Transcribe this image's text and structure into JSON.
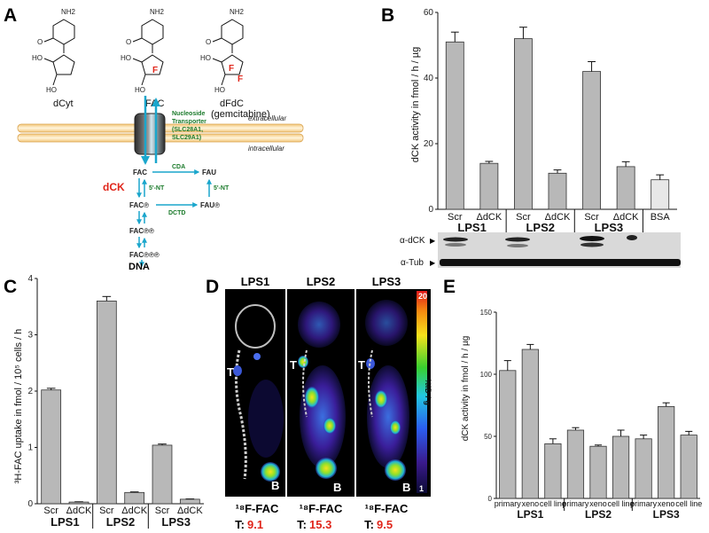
{
  "panels": {
    "A": {
      "label": "A",
      "molecules": [
        {
          "name": "dCyt",
          "nh2": "NH2",
          "ho5": "HO",
          "ho3": "HO",
          "o": "O",
          "n": "N"
        },
        {
          "name": "FAC",
          "nh2": "NH2",
          "ho5": "HO",
          "ho3": "HO",
          "o": "O",
          "n": "N",
          "f": "F"
        },
        {
          "name": "dFdC",
          "sub": "(gemcitabine)",
          "nh2": "NH2",
          "ho5": "HO",
          "ho3": "HO",
          "o": "O",
          "n": "N",
          "f1": "F",
          "f2": "F"
        }
      ],
      "membrane": {
        "extracellular": "extracellular",
        "intracellular": "intracellular"
      },
      "transporter": [
        "Nucleoside",
        "Transporter",
        "(SLC28A1,",
        "SLC29A1)"
      ],
      "pathway": {
        "fac": "FAC",
        "fau": "FAU",
        "cda": "CDA",
        "dck": "dCK",
        "nt1": "5'-NT",
        "nt2": "5'-NT",
        "facp": "FAC℗",
        "faup": "FAU℗",
        "dctd": "DCTD",
        "facpp": "FAC℗℗",
        "facppp": "FAC℗℗℗",
        "dna": "DNA"
      }
    },
    "B": {
      "label": "B",
      "ylabel": "dCK activity in fmol / h / µg",
      "blot": {
        "dck_label": "α-dCK",
        "tub_label": "α-Tub"
      }
    },
    "C": {
      "label": "C",
      "ylabel": "³H-FAC uptake in fmol / 10⁵ cells / h"
    },
    "D": {
      "label": "D",
      "columns": [
        {
          "title": "LPS1",
          "tracer": "¹⁸F-FAC",
          "t_label": "T:",
          "t_value": "9.1"
        },
        {
          "title": "LPS2",
          "tracer": "¹⁸F-FAC",
          "t_label": "T:",
          "t_value": "15.3"
        },
        {
          "title": "LPS3",
          "tracer": "¹⁸F-FAC",
          "t_label": "T:",
          "t_value": "9.5"
        }
      ],
      "markers": {
        "tumor": "T",
        "bladder": "B"
      },
      "scale": {
        "max": "20",
        "min": "1",
        "unit": "%ID / g"
      }
    },
    "E": {
      "label": "E",
      "ylabel": "dCK activity in fmol / h / µg"
    }
  },
  "chart_data": [
    {
      "id": "B",
      "type": "bar",
      "categories": [
        "Scr",
        "ΔdCK",
        "Scr",
        "ΔdCK",
        "Scr",
        "ΔdCK",
        "BSA"
      ],
      "groups": [
        "LPS1",
        "LPS2",
        "LPS3"
      ],
      "values": [
        51,
        14,
        52,
        11,
        42,
        13,
        9
      ],
      "errors": [
        3,
        0.6,
        3.5,
        1,
        3,
        1.5,
        1.5
      ],
      "ylim": [
        0,
        60
      ],
      "yticks": [
        0,
        20,
        40,
        60
      ],
      "ylabel": "dCK activity in fmol / h / µg",
      "bar_colors": [
        "#b8b8b8",
        "#b8b8b8",
        "#b8b8b8",
        "#b8b8b8",
        "#b8b8b8",
        "#b8b8b8",
        "#e8e8e8"
      ]
    },
    {
      "id": "C",
      "type": "bar",
      "categories": [
        "Scr",
        "ΔdCK",
        "Scr",
        "ΔdCK",
        "Scr",
        "ΔdCK"
      ],
      "groups": [
        "LPS1",
        "LPS2",
        "LPS3"
      ],
      "values": [
        2.02,
        0.03,
        3.6,
        0.2,
        1.04,
        0.08
      ],
      "errors": [
        0.03,
        0.005,
        0.08,
        0.01,
        0.02,
        0.005
      ],
      "ylim": [
        0,
        4
      ],
      "yticks": [
        0,
        1,
        2,
        3,
        4
      ],
      "ylabel": "³H-FAC uptake in fmol / 10⁵ cells / h"
    },
    {
      "id": "E",
      "type": "bar",
      "categories": [
        "primary",
        "xeno",
        "cell line",
        "primary",
        "xeno",
        "cell line",
        "primary",
        "xeno",
        "cell line"
      ],
      "groups": [
        "LPS1",
        "LPS2",
        "LPS3"
      ],
      "values": [
        103,
        120,
        44,
        55,
        42,
        50,
        48,
        74,
        51
      ],
      "errors": [
        8,
        4,
        4,
        2,
        1,
        5,
        3,
        3,
        3
      ],
      "ylim": [
        0,
        150
      ],
      "yticks": [
        0,
        50,
        100,
        150
      ],
      "ylabel": "dCK activity in fmol / h / µg"
    }
  ]
}
